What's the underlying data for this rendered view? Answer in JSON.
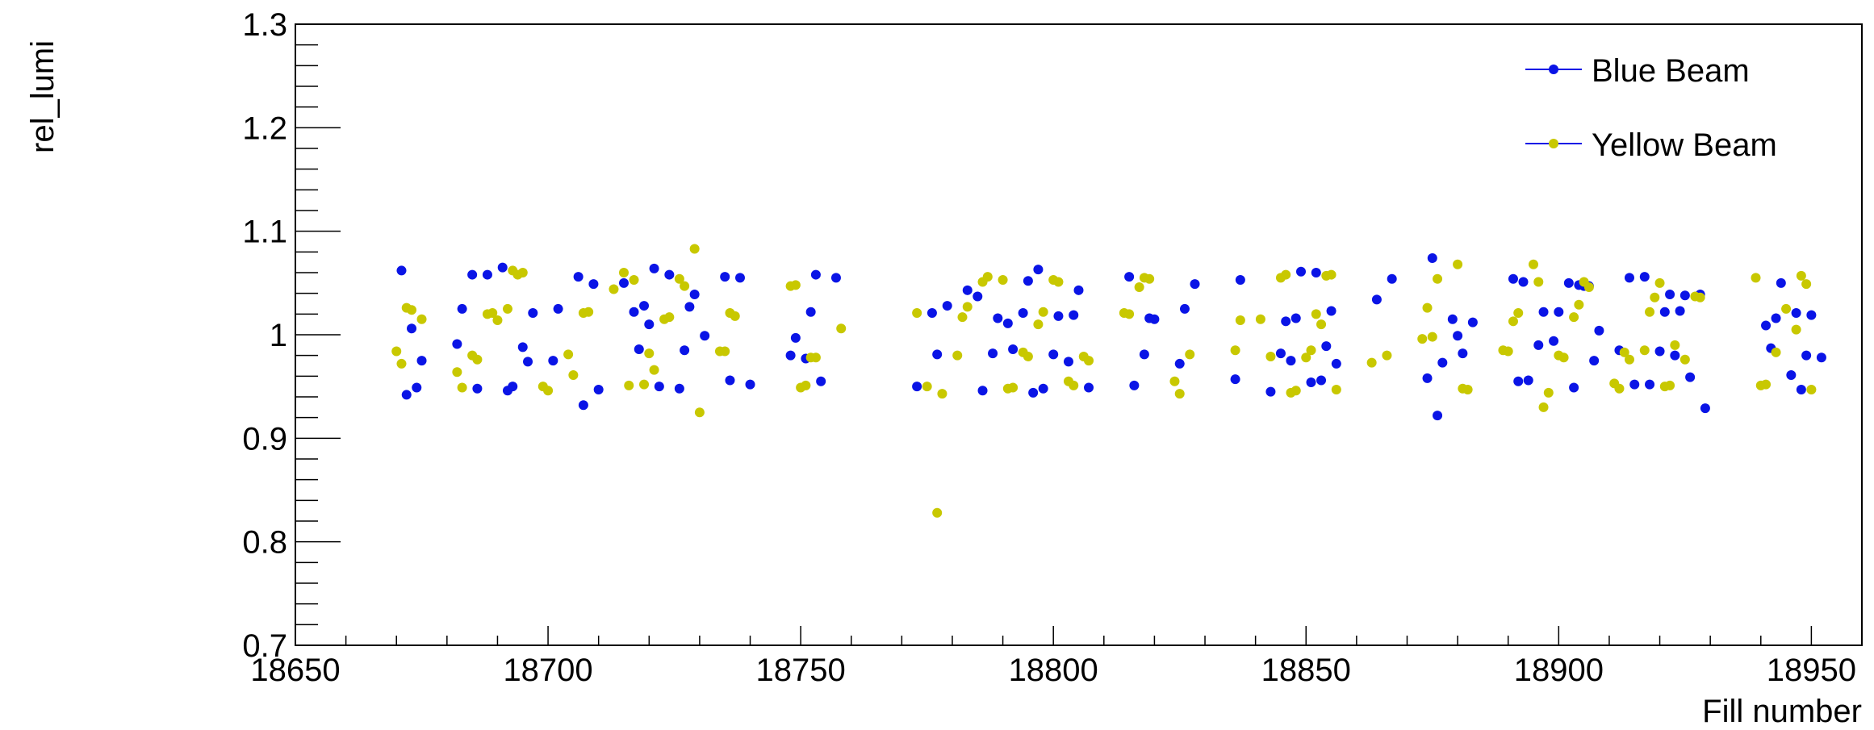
{
  "chart_data": {
    "type": "scatter",
    "xlabel": "Fill number",
    "ylabel": "rel_lumi",
    "xlim": [
      18650,
      18960
    ],
    "ylim": [
      0.7,
      1.3
    ],
    "x_ticks": [
      "18650",
      "18700",
      "18750",
      "18800",
      "18850",
      "18900",
      "18950"
    ],
    "y_ticks": [
      "0.7",
      "0.8",
      "0.9",
      "1",
      "1.1",
      "1.2",
      "1.3"
    ],
    "grid": false,
    "legend_position": "top-right",
    "series": [
      {
        "name": "Blue Beam",
        "color": "#0a14e6",
        "points": [
          [
            18671,
            1.062
          ],
          [
            18672,
            0.942
          ],
          [
            18673,
            1.006
          ],
          [
            18674,
            0.949
          ],
          [
            18675,
            0.975
          ],
          [
            18682,
            0.991
          ],
          [
            18683,
            1.025
          ],
          [
            18685,
            1.058
          ],
          [
            18686,
            0.948
          ],
          [
            18688,
            1.058
          ],
          [
            18691,
            1.065
          ],
          [
            18692,
            0.946
          ],
          [
            18693,
            0.95
          ],
          [
            18695,
            0.988
          ],
          [
            18696,
            0.974
          ],
          [
            18697,
            1.021
          ],
          [
            18701,
            0.975
          ],
          [
            18702,
            1.025
          ],
          [
            18706,
            1.056
          ],
          [
            18707,
            0.932
          ],
          [
            18709,
            1.049
          ],
          [
            18710,
            0.947
          ],
          [
            18715,
            1.05
          ],
          [
            18717,
            1.022
          ],
          [
            18718,
            0.986
          ],
          [
            18719,
            1.028
          ],
          [
            18720,
            1.01
          ],
          [
            18721,
            1.064
          ],
          [
            18722,
            0.95
          ],
          [
            18724,
            1.058
          ],
          [
            18726,
            0.948
          ],
          [
            18727,
            0.985
          ],
          [
            18728,
            1.027
          ],
          [
            18729,
            1.039
          ],
          [
            18731,
            0.999
          ],
          [
            18735,
            1.056
          ],
          [
            18736,
            0.956
          ],
          [
            18738,
            1.055
          ],
          [
            18740,
            0.952
          ],
          [
            18748,
            0.98
          ],
          [
            18749,
            0.997
          ],
          [
            18751,
            0.977
          ],
          [
            18752,
            1.022
          ],
          [
            18753,
            1.058
          ],
          [
            18754,
            0.955
          ],
          [
            18757,
            1.055
          ],
          [
            18773,
            0.95
          ],
          [
            18776,
            1.021
          ],
          [
            18777,
            0.981
          ],
          [
            18779,
            1.028
          ],
          [
            18783,
            1.043
          ],
          [
            18785,
            1.037
          ],
          [
            18786,
            0.946
          ],
          [
            18788,
            0.982
          ],
          [
            18789,
            1.016
          ],
          [
            18791,
            1.011
          ],
          [
            18792,
            0.986
          ],
          [
            18794,
            1.021
          ],
          [
            18795,
            1.052
          ],
          [
            18796,
            0.944
          ],
          [
            18797,
            1.063
          ],
          [
            18798,
            0.948
          ],
          [
            18800,
            0.981
          ],
          [
            18801,
            1.018
          ],
          [
            18803,
            0.974
          ],
          [
            18804,
            1.019
          ],
          [
            18805,
            1.043
          ],
          [
            18807,
            0.949
          ],
          [
            18815,
            1.056
          ],
          [
            18816,
            0.951
          ],
          [
            18818,
            0.981
          ],
          [
            18819,
            1.016
          ],
          [
            18820,
            1.015
          ],
          [
            18825,
            0.972
          ],
          [
            18826,
            1.025
          ],
          [
            18828,
            1.049
          ],
          [
            18836,
            0.957
          ],
          [
            18837,
            1.053
          ],
          [
            18843,
            0.945
          ],
          [
            18845,
            0.982
          ],
          [
            18846,
            1.013
          ],
          [
            18847,
            0.975
          ],
          [
            18848,
            1.016
          ],
          [
            18849,
            1.061
          ],
          [
            18851,
            0.954
          ],
          [
            18852,
            1.06
          ],
          [
            18853,
            0.956
          ],
          [
            18854,
            0.989
          ],
          [
            18855,
            1.023
          ],
          [
            18856,
            0.972
          ],
          [
            18864,
            1.034
          ],
          [
            18867,
            1.054
          ],
          [
            18874,
            0.958
          ],
          [
            18875,
            1.074
          ],
          [
            18876,
            0.922
          ],
          [
            18877,
            0.973
          ],
          [
            18879,
            1.015
          ],
          [
            18880,
            0.999
          ],
          [
            18881,
            0.982
          ],
          [
            18883,
            1.012
          ],
          [
            18891,
            1.054
          ],
          [
            18892,
            0.955
          ],
          [
            18893,
            1.051
          ],
          [
            18894,
            0.956
          ],
          [
            18896,
            0.99
          ],
          [
            18897,
            1.022
          ],
          [
            18899,
            0.994
          ],
          [
            18900,
            1.022
          ],
          [
            18902,
            1.05
          ],
          [
            18903,
            0.949
          ],
          [
            18904,
            1.048
          ],
          [
            18905,
            1.047
          ],
          [
            18906,
            1.047
          ],
          [
            18907,
            0.975
          ],
          [
            18908,
            1.004
          ],
          [
            18912,
            0.985
          ],
          [
            18914,
            1.055
          ],
          [
            18915,
            0.952
          ],
          [
            18917,
            1.056
          ],
          [
            18918,
            0.952
          ],
          [
            18920,
            0.984
          ],
          [
            18921,
            1.022
          ],
          [
            18922,
            1.039
          ],
          [
            18923,
            0.98
          ],
          [
            18924,
            1.023
          ],
          [
            18925,
            1.038
          ],
          [
            18926,
            0.959
          ],
          [
            18928,
            1.039
          ],
          [
            18929,
            0.929
          ],
          [
            18941,
            1.009
          ],
          [
            18942,
            0.987
          ],
          [
            18943,
            1.016
          ],
          [
            18944,
            1.05
          ],
          [
            18946,
            0.961
          ],
          [
            18947,
            1.021
          ],
          [
            18948,
            0.947
          ],
          [
            18949,
            0.98
          ],
          [
            18950,
            1.019
          ],
          [
            18952,
            0.978
          ]
        ]
      },
      {
        "name": "Yellow Beam",
        "color": "#c8c800",
        "points": [
          [
            18670,
            0.984
          ],
          [
            18671,
            0.972
          ],
          [
            18672,
            1.026
          ],
          [
            18673,
            1.024
          ],
          [
            18675,
            1.015
          ],
          [
            18682,
            0.964
          ],
          [
            18683,
            0.949
          ],
          [
            18685,
            0.98
          ],
          [
            18686,
            0.976
          ],
          [
            18688,
            1.02
          ],
          [
            18689,
            1.021
          ],
          [
            18690,
            1.014
          ],
          [
            18692,
            1.025
          ],
          [
            18693,
            1.062
          ],
          [
            18694,
            1.058
          ],
          [
            18695,
            1.06
          ],
          [
            18699,
            0.95
          ],
          [
            18700,
            0.946
          ],
          [
            18704,
            0.981
          ],
          [
            18705,
            0.961
          ],
          [
            18707,
            1.021
          ],
          [
            18708,
            1.022
          ],
          [
            18713,
            1.044
          ],
          [
            18715,
            1.06
          ],
          [
            18716,
            0.951
          ],
          [
            18717,
            1.053
          ],
          [
            18719,
            0.952
          ],
          [
            18720,
            0.982
          ],
          [
            18721,
            0.966
          ],
          [
            18723,
            1.015
          ],
          [
            18724,
            1.017
          ],
          [
            18726,
            1.054
          ],
          [
            18727,
            1.047
          ],
          [
            18729,
            1.083
          ],
          [
            18730,
            0.925
          ],
          [
            18734,
            0.984
          ],
          [
            18735,
            0.984
          ],
          [
            18736,
            1.021
          ],
          [
            18737,
            1.018
          ],
          [
            18748,
            1.047
          ],
          [
            18749,
            1.048
          ],
          [
            18750,
            0.949
          ],
          [
            18751,
            0.951
          ],
          [
            18752,
            0.978
          ],
          [
            18753,
            0.978
          ],
          [
            18758,
            1.006
          ],
          [
            18773,
            1.021
          ],
          [
            18775,
            0.95
          ],
          [
            18777,
            0.828
          ],
          [
            18778,
            0.943
          ],
          [
            18781,
            0.98
          ],
          [
            18782,
            1.017
          ],
          [
            18783,
            1.027
          ],
          [
            18786,
            1.051
          ],
          [
            18787,
            1.056
          ],
          [
            18790,
            1.053
          ],
          [
            18791,
            0.948
          ],
          [
            18792,
            0.949
          ],
          [
            18794,
            0.983
          ],
          [
            18795,
            0.979
          ],
          [
            18797,
            1.01
          ],
          [
            18798,
            1.022
          ],
          [
            18800,
            1.053
          ],
          [
            18801,
            1.051
          ],
          [
            18803,
            0.955
          ],
          [
            18804,
            0.951
          ],
          [
            18806,
            0.979
          ],
          [
            18807,
            0.975
          ],
          [
            18814,
            1.021
          ],
          [
            18815,
            1.02
          ],
          [
            18817,
            1.046
          ],
          [
            18818,
            1.055
          ],
          [
            18819,
            1.054
          ],
          [
            18824,
            0.955
          ],
          [
            18825,
            0.943
          ],
          [
            18827,
            0.981
          ],
          [
            18836,
            0.985
          ],
          [
            18837,
            1.014
          ],
          [
            18841,
            1.015
          ],
          [
            18843,
            0.979
          ],
          [
            18845,
            1.055
          ],
          [
            18846,
            1.058
          ],
          [
            18847,
            0.944
          ],
          [
            18848,
            0.946
          ],
          [
            18850,
            0.978
          ],
          [
            18851,
            0.985
          ],
          [
            18852,
            1.02
          ],
          [
            18853,
            1.01
          ],
          [
            18854,
            1.057
          ],
          [
            18855,
            1.058
          ],
          [
            18856,
            0.947
          ],
          [
            18863,
            0.973
          ],
          [
            18866,
            0.98
          ],
          [
            18873,
            0.996
          ],
          [
            18874,
            1.026
          ],
          [
            18875,
            0.998
          ],
          [
            18876,
            1.054
          ],
          [
            18880,
            1.068
          ],
          [
            18881,
            0.948
          ],
          [
            18882,
            0.947
          ],
          [
            18889,
            0.985
          ],
          [
            18890,
            0.984
          ],
          [
            18891,
            1.013
          ],
          [
            18892,
            1.021
          ],
          [
            18895,
            1.068
          ],
          [
            18896,
            1.051
          ],
          [
            18897,
            0.93
          ],
          [
            18898,
            0.944
          ],
          [
            18900,
            0.98
          ],
          [
            18901,
            0.978
          ],
          [
            18903,
            1.017
          ],
          [
            18904,
            1.029
          ],
          [
            18905,
            1.051
          ],
          [
            18906,
            1.046
          ],
          [
            18911,
            0.953
          ],
          [
            18912,
            0.948
          ],
          [
            18913,
            0.983
          ],
          [
            18914,
            0.976
          ],
          [
            18917,
            0.985
          ],
          [
            18918,
            1.022
          ],
          [
            18919,
            1.036
          ],
          [
            18920,
            1.05
          ],
          [
            18921,
            0.95
          ],
          [
            18922,
            0.951
          ],
          [
            18923,
            0.99
          ],
          [
            18925,
            0.976
          ],
          [
            18927,
            1.037
          ],
          [
            18928,
            1.036
          ],
          [
            18939,
            1.055
          ],
          [
            18940,
            0.951
          ],
          [
            18941,
            0.952
          ],
          [
            18943,
            0.983
          ],
          [
            18945,
            1.025
          ],
          [
            18947,
            1.005
          ],
          [
            18948,
            1.057
          ],
          [
            18949,
            1.049
          ],
          [
            18950,
            0.947
          ]
        ]
      }
    ]
  }
}
